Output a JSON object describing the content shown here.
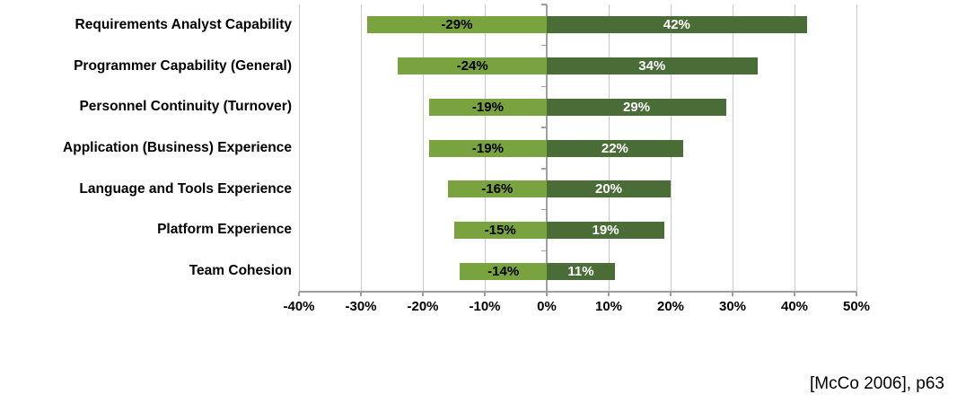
{
  "caption": {
    "text": "[McCo 2006], p63"
  },
  "chart_data": {
    "type": "bar",
    "orientation": "horizontal",
    "title": "",
    "xlabel": "",
    "ylabel": "",
    "categories": [
      "Requirements Analyst Capability",
      "Programmer Capability (General)",
      "Personnel Continuity (Turnover)",
      "Application (Business) Experience",
      "Language and Tools Experience",
      "Platform Experience",
      "Team Cohesion"
    ],
    "series": [
      {
        "name": "negative",
        "color": "#79A33E",
        "label_color": "#000000",
        "values": [
          -29,
          -24,
          -19,
          -19,
          -16,
          -15,
          -14
        ]
      },
      {
        "name": "positive",
        "color": "#4A6D38",
        "label_color": "#FFFFFF",
        "values": [
          42,
          34,
          29,
          22,
          20,
          19,
          11
        ]
      }
    ],
    "value_label_format": "{v}%",
    "x_axis": {
      "min": -40,
      "max": 50,
      "step": 10,
      "tick_labels": [
        "-40%",
        "-30%",
        "-20%",
        "-10%",
        "0%",
        "10%",
        "20%",
        "30%",
        "40%",
        "50%"
      ]
    },
    "grid": true,
    "legend": false,
    "colors": {
      "gridline": "#c9c9c9",
      "axis": "#9e9e9e",
      "category_label": "#000000"
    }
  }
}
